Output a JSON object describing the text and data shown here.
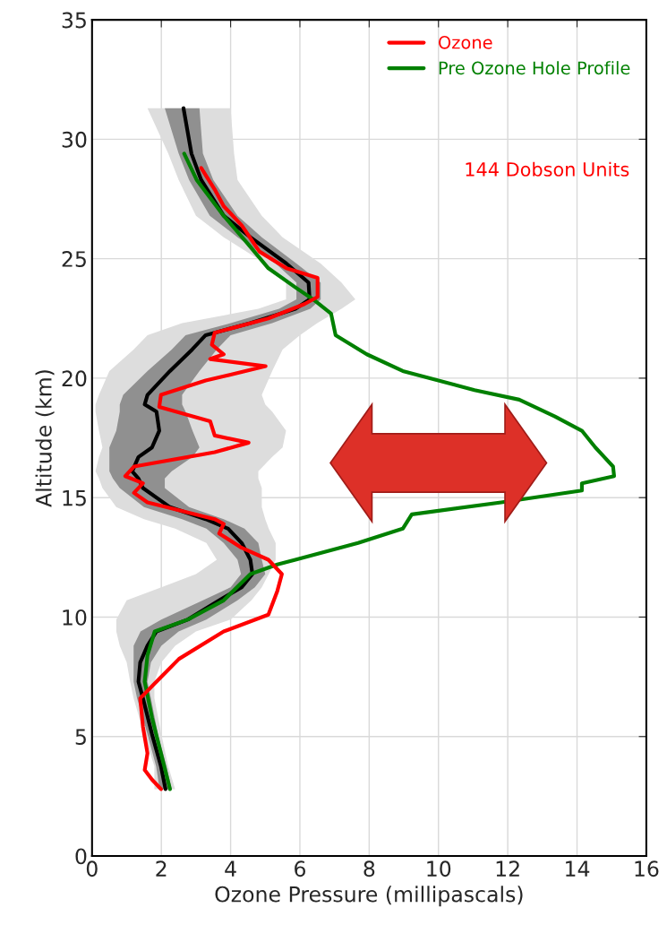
{
  "chart_data": {
    "type": "line",
    "orientation": "horizontal",
    "xlabel": "Ozone Pressure (millipascals)",
    "ylabel": "Altitude (km)",
    "xlim": [
      0,
      16
    ],
    "xticks": [
      0,
      2,
      4,
      6,
      8,
      10,
      12,
      14,
      16
    ],
    "ylim": [
      0,
      35
    ],
    "yticks": [
      0,
      5,
      10,
      15,
      20,
      25,
      30,
      35
    ],
    "grid": true,
    "legend": "top right",
    "annotations": [
      "144 Dobson Units"
    ],
    "series": [
      {
        "color": "#dddddd",
        "x": [
          31.3,
          29.4,
          28.3,
          26.8,
          25.9,
          24.8,
          24.0,
          23.3,
          22.9,
          22.3,
          21.8,
          21.2,
          20.3,
          19.3,
          18.9,
          18.6,
          17.8,
          17.1,
          16.7,
          16.1,
          15.8,
          15.4,
          14.6,
          14.1,
          13.7,
          13.1,
          12.4,
          11.8,
          11.25,
          10.7,
          9.9,
          9.4,
          8.8,
          8.1,
          7.3,
          6.6,
          5.1,
          3.75,
          2.8
        ],
        "lower": [
          1.6,
          2.2,
          2.5,
          3.0,
          3.8,
          5.0,
          5.6,
          5.6,
          4.8,
          2.6,
          1.6,
          1.2,
          0.5,
          0.2,
          0.1,
          0.1,
          0.2,
          0.3,
          0.2,
          0.1,
          0.2,
          0.3,
          0.7,
          1.5,
          2.4,
          3.3,
          3.6,
          3.0,
          2.0,
          1.0,
          0.7,
          0.7,
          0.8,
          1.0,
          1.1,
          1.2,
          1.5,
          1.8,
          1.8
        ],
        "upper": [
          4.0,
          4.1,
          4.2,
          4.9,
          5.5,
          6.6,
          7.2,
          7.6,
          7.2,
          6.5,
          6.0,
          5.5,
          5.2,
          4.9,
          5.0,
          5.2,
          5.6,
          5.5,
          5.2,
          4.8,
          4.8,
          4.9,
          4.9,
          5.0,
          5.1,
          5.3,
          5.3,
          5.1,
          4.9,
          4.6,
          4.0,
          3.0,
          2.4,
          2.0,
          1.8,
          1.8,
          2.0,
          2.2,
          2.4
        ],
        "values": [
          null,
          null,
          null,
          null,
          null,
          null,
          null,
          null,
          null,
          null,
          null,
          null,
          null,
          null,
          null,
          null,
          null,
          null,
          null,
          null,
          null,
          null,
          null,
          null,
          null,
          null,
          null,
          null,
          null,
          null,
          null,
          null,
          null,
          null,
          null,
          null,
          null,
          null,
          null
        ]
      },
      {
        "color": "#000000",
        "x": [
          31.3,
          29.4,
          28.3,
          26.8,
          25.9,
          24.8,
          24.0,
          23.3,
          22.9,
          22.3,
          21.8,
          21.2,
          20.3,
          19.3,
          18.9,
          18.6,
          17.8,
          17.1,
          16.7,
          16.1,
          15.8,
          15.4,
          14.6,
          14.1,
          13.7,
          13.1,
          12.4,
          11.8,
          11.25,
          10.7,
          9.9,
          9.4,
          8.8,
          8.1,
          7.3,
          6.6,
          5.1,
          3.75,
          2.8
        ],
        "values": [
          2.64,
          2.87,
          3.15,
          3.8,
          4.57,
          5.61,
          6.25,
          6.28,
          5.87,
          4.57,
          3.28,
          2.89,
          2.25,
          1.6,
          1.52,
          1.86,
          1.94,
          1.73,
          1.34,
          1.16,
          1.34,
          1.47,
          2.25,
          3.28,
          3.93,
          4.32,
          4.57,
          4.63,
          4.32,
          3.67,
          2.77,
          1.86,
          1.6,
          1.39,
          1.34,
          1.47,
          1.73,
          1.99,
          2.12
        ],
        "lower": [
          2.1,
          2.5,
          2.8,
          3.4,
          4.2,
          5.3,
          5.9,
          5.9,
          5.4,
          4.0,
          2.7,
          2.3,
          1.6,
          0.9,
          0.8,
          0.8,
          0.7,
          0.5,
          0.5,
          0.5,
          0.6,
          0.8,
          1.5,
          2.6,
          3.3,
          3.8,
          4.2,
          4.3,
          4.0,
          3.2,
          2.0,
          1.4,
          1.2,
          1.2,
          1.2,
          1.3,
          1.6,
          1.85,
          1.95
        ],
        "upper": [
          3.1,
          3.2,
          3.5,
          4.2,
          4.9,
          5.9,
          6.6,
          6.6,
          6.3,
          5.2,
          4.0,
          3.6,
          3.1,
          2.6,
          2.6,
          2.7,
          2.9,
          3.1,
          2.9,
          2.3,
          2.1,
          2.1,
          2.8,
          3.8,
          4.4,
          4.8,
          4.9,
          5.0,
          4.7,
          4.2,
          3.3,
          2.5,
          2.0,
          1.7,
          1.6,
          1.7,
          1.9,
          2.15,
          2.3
        ]
      },
      {
        "name": "Pre Ozone Hole Profile",
        "color": "#008000",
        "x": [
          29.4,
          28.3,
          26.8,
          25.7,
          24.6,
          23.8,
          23.3,
          22.7,
          21.8,
          21.0,
          20.3,
          19.5,
          19.1,
          18.4,
          17.8,
          17.1,
          16.3,
          15.9,
          15.6,
          15.3,
          14.8,
          14.3,
          13.7,
          13.1,
          12.4,
          12.2,
          11.8,
          10.7,
          9.9,
          9.4,
          8.4,
          7.3,
          5.8,
          4.3,
          2.8
        ],
        "values": [
          2.66,
          3.02,
          3.8,
          4.45,
          5.09,
          5.87,
          6.38,
          6.9,
          7.03,
          7.93,
          8.97,
          11.04,
          12.33,
          13.36,
          14.14,
          14.53,
          15.04,
          15.07,
          14.14,
          14.14,
          11.81,
          9.23,
          8.97,
          7.68,
          5.87,
          5.35,
          4.57,
          3.8,
          2.77,
          1.81,
          1.6,
          1.52,
          1.73,
          1.99,
          2.25
        ]
      },
      {
        "name": "Ozone",
        "color": "#ff0000",
        "x": [
          28.8,
          27.9,
          27.2,
          26.4,
          25.3,
          24.6,
          24.2,
          23.4,
          23.1,
          22.5,
          21.9,
          21.4,
          21.0,
          20.8,
          20.5,
          19.9,
          19.3,
          18.8,
          18.2,
          17.6,
          17.3,
          16.9,
          16.3,
          15.9,
          15.6,
          15.2,
          14.8,
          14.1,
          13.9,
          13.5,
          12.9,
          12.4,
          11.8,
          11.1,
          10.1,
          9.4,
          8.25,
          7.3,
          6.6,
          5.4,
          4.3,
          3.6,
          3.2,
          2.8
        ],
        "values": [
          3.15,
          3.54,
          3.8,
          4.32,
          4.83,
          5.61,
          6.51,
          6.51,
          6.13,
          5.09,
          3.54,
          3.46,
          3.8,
          3.41,
          5.01,
          3.28,
          1.99,
          1.94,
          3.41,
          3.54,
          4.52,
          3.54,
          1.21,
          0.96,
          1.47,
          1.21,
          1.6,
          3.54,
          3.8,
          3.67,
          4.32,
          5.09,
          5.48,
          5.35,
          5.09,
          3.8,
          2.51,
          1.86,
          1.39,
          1.47,
          1.6,
          1.52,
          1.73,
          1.99
        ]
      }
    ]
  }
}
